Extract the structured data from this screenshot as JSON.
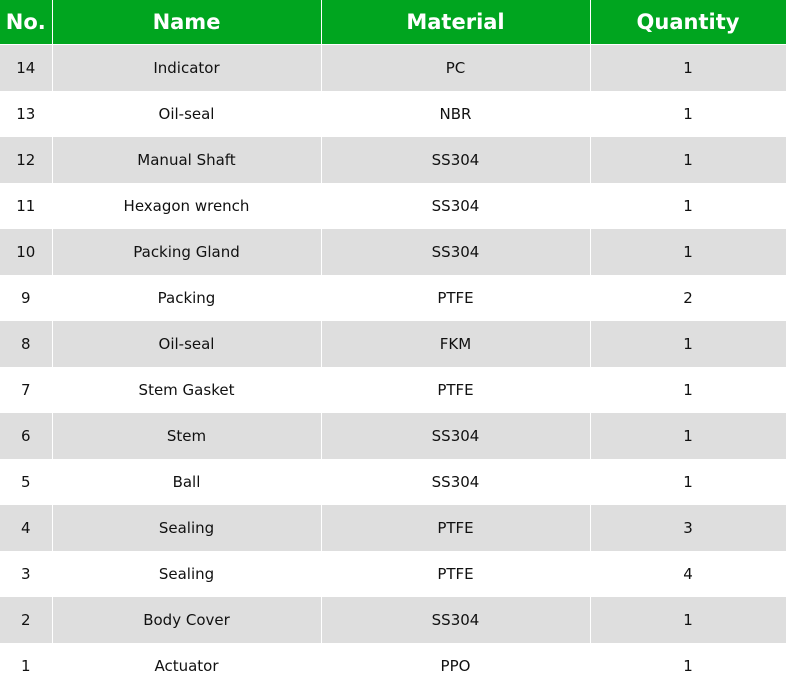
{
  "header_color": "#00a51f",
  "columns": [
    "No.",
    "Name",
    "Material",
    "Quantity"
  ],
  "rows": [
    [
      "14",
      "Indicator",
      "PC",
      "1"
    ],
    [
      "13",
      "Oil-seal",
      "NBR",
      "1"
    ],
    [
      "12",
      "Manual Shaft",
      "SS304",
      "1"
    ],
    [
      "11",
      "Hexagon wrench",
      "SS304",
      "1"
    ],
    [
      "10",
      "Packing Gland",
      "SS304",
      "1"
    ],
    [
      "9",
      "Packing",
      "PTFE",
      "2"
    ],
    [
      "8",
      "Oil-seal",
      "FKM",
      "1"
    ],
    [
      "7",
      "Stem Gasket",
      "PTFE",
      "1"
    ],
    [
      "6",
      "Stem",
      "SS304",
      "1"
    ],
    [
      "5",
      "Ball",
      "SS304",
      "1"
    ],
    [
      "4",
      "Sealing",
      "PTFE",
      "3"
    ],
    [
      "3",
      "Sealing",
      "PTFE",
      "4"
    ],
    [
      "2",
      "Body Cover",
      "SS304",
      "1"
    ],
    [
      "1",
      "Actuator",
      "PPO",
      "1"
    ]
  ]
}
